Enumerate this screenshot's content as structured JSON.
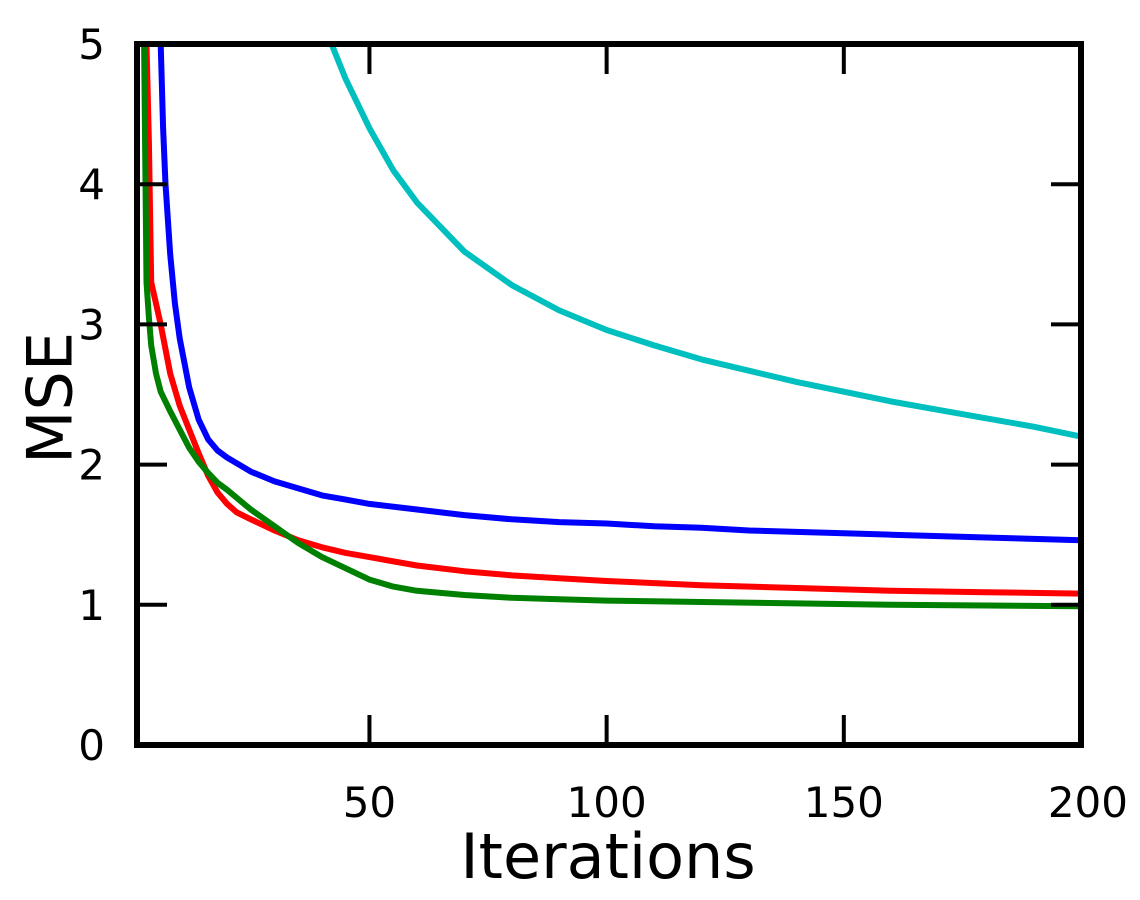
{
  "chart_data": {
    "type": "line",
    "xlabel": "Iterations",
    "ylabel": "MSE",
    "xlim": [
      1,
      200
    ],
    "ylim": [
      0,
      5
    ],
    "xticks": [
      50,
      100,
      150,
      200
    ],
    "yticks": [
      0,
      1,
      2,
      3,
      4,
      5
    ],
    "x_tick_labels": [
      "50",
      "100",
      "150",
      "200"
    ],
    "y_tick_labels": [
      "0",
      "1",
      "2",
      "3",
      "4",
      "5"
    ],
    "grid": false,
    "legend": "none",
    "series": [
      {
        "color": "#00bfbf",
        "x": [
          42,
          45,
          50,
          55,
          60,
          70,
          80,
          90,
          100,
          110,
          120,
          130,
          140,
          150,
          160,
          170,
          180,
          190,
          200
        ],
        "y": [
          5.0,
          4.75,
          4.4,
          4.1,
          3.87,
          3.52,
          3.28,
          3.1,
          2.96,
          2.85,
          2.75,
          2.67,
          2.59,
          2.52,
          2.45,
          2.39,
          2.33,
          2.27,
          2.2
        ]
      },
      {
        "color": "#0000ff",
        "x": [
          6,
          6.5,
          7,
          8,
          9,
          10,
          12,
          14,
          16,
          18,
          20,
          25,
          30,
          35,
          40,
          45,
          50,
          60,
          70,
          80,
          90,
          100,
          110,
          120,
          130,
          140,
          150,
          160,
          170,
          180,
          190,
          200
        ],
        "y": [
          5.0,
          4.4,
          4.0,
          3.5,
          3.15,
          2.9,
          2.55,
          2.32,
          2.18,
          2.1,
          2.05,
          1.95,
          1.88,
          1.83,
          1.78,
          1.75,
          1.72,
          1.68,
          1.64,
          1.61,
          1.59,
          1.58,
          1.56,
          1.55,
          1.53,
          1.52,
          1.51,
          1.5,
          1.49,
          1.48,
          1.47,
          1.46
        ]
      },
      {
        "color": "#ff0000",
        "x": [
          3,
          3.5,
          4,
          5,
          6,
          8,
          10,
          12,
          14,
          16,
          18,
          20,
          22,
          25,
          30,
          35,
          40,
          45,
          50,
          60,
          70,
          80,
          90,
          100,
          120,
          140,
          160,
          180,
          200
        ],
        "y": [
          5.0,
          4.3,
          3.3,
          3.15,
          3.0,
          2.65,
          2.42,
          2.25,
          2.08,
          1.92,
          1.8,
          1.72,
          1.66,
          1.61,
          1.53,
          1.46,
          1.41,
          1.37,
          1.34,
          1.28,
          1.24,
          1.21,
          1.19,
          1.17,
          1.14,
          1.12,
          1.1,
          1.09,
          1.08
        ]
      },
      {
        "color": "#008000",
        "x": [
          2.5,
          3,
          3.5,
          4,
          5,
          6,
          8,
          10,
          12,
          14,
          16,
          18,
          20,
          25,
          30,
          35,
          40,
          45,
          50,
          52,
          55,
          60,
          70,
          80,
          90,
          100,
          120,
          140,
          160,
          180,
          200
        ],
        "y": [
          5.0,
          3.3,
          3.05,
          2.85,
          2.65,
          2.52,
          2.38,
          2.25,
          2.12,
          2.02,
          1.94,
          1.87,
          1.82,
          1.68,
          1.56,
          1.44,
          1.34,
          1.26,
          1.18,
          1.16,
          1.13,
          1.1,
          1.07,
          1.05,
          1.04,
          1.03,
          1.02,
          1.01,
          1.0,
          0.995,
          0.99
        ]
      }
    ]
  }
}
